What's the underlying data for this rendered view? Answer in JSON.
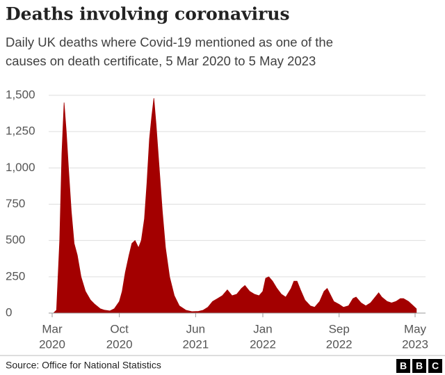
{
  "chart_data": {
    "type": "area",
    "title": "Deaths involving coronavirus",
    "subtitle": [
      "Daily UK deaths where Covid-19 mentioned as one of the",
      "causes on death certificate, 5 Mar 2020 to 5 May 2023"
    ],
    "color": "#a30000",
    "x": [
      "2020-03-05",
      "2020-03-15",
      "2020-03-25",
      "2020-04-01",
      "2020-04-08",
      "2020-04-15",
      "2020-04-22",
      "2020-05-01",
      "2020-05-10",
      "2020-05-20",
      "2020-06-01",
      "2020-06-15",
      "2020-07-01",
      "2020-07-15",
      "2020-08-01",
      "2020-08-15",
      "2020-09-01",
      "2020-09-15",
      "2020-10-01",
      "2020-10-10",
      "2020-10-20",
      "2020-11-01",
      "2020-11-10",
      "2020-11-20",
      "2020-12-01",
      "2020-12-10",
      "2020-12-20",
      "2020-12-28",
      "2021-01-05",
      "2021-01-12",
      "2021-01-19",
      "2021-01-26",
      "2021-02-05",
      "2021-02-15",
      "2021-02-25",
      "2021-03-10",
      "2021-03-25",
      "2021-04-10",
      "2021-05-01",
      "2021-05-20",
      "2021-06-10",
      "2021-06-25",
      "2021-07-10",
      "2021-07-25",
      "2021-08-10",
      "2021-08-25",
      "2021-09-10",
      "2021-09-25",
      "2021-10-10",
      "2021-10-25",
      "2021-11-05",
      "2021-11-20",
      "2021-12-05",
      "2021-12-20",
      "2022-01-01",
      "2022-01-10",
      "2022-01-20",
      "2022-02-01",
      "2022-02-15",
      "2022-03-01",
      "2022-03-15",
      "2022-04-01",
      "2022-04-10",
      "2022-04-20",
      "2022-05-01",
      "2022-05-15",
      "2022-06-01",
      "2022-06-15",
      "2022-07-01",
      "2022-07-15",
      "2022-07-25",
      "2022-08-01",
      "2022-08-15",
      "2022-09-01",
      "2022-09-15",
      "2022-10-01",
      "2022-10-15",
      "2022-10-25",
      "2022-11-10",
      "2022-11-25",
      "2022-12-10",
      "2022-12-25",
      "2023-01-05",
      "2023-01-15",
      "2023-02-01",
      "2023-02-15",
      "2023-03-01",
      "2023-03-15",
      "2023-03-25",
      "2023-04-10",
      "2023-04-25",
      "2023-05-05"
    ],
    "values": [
      0,
      20,
      500,
      1100,
      1450,
      1250,
      1000,
      700,
      480,
      400,
      250,
      150,
      90,
      60,
      30,
      20,
      15,
      30,
      80,
      150,
      280,
      400,
      480,
      500,
      450,
      500,
      650,
      900,
      1200,
      1350,
      1480,
      1300,
      1000,
      700,
      450,
      250,
      120,
      50,
      20,
      10,
      12,
      20,
      40,
      80,
      100,
      120,
      160,
      120,
      130,
      170,
      190,
      150,
      130,
      120,
      150,
      240,
      250,
      220,
      170,
      130,
      110,
      170,
      220,
      220,
      160,
      90,
      50,
      40,
      80,
      150,
      170,
      140,
      80,
      60,
      40,
      50,
      100,
      110,
      70,
      50,
      70,
      110,
      140,
      110,
      80,
      70,
      80,
      100,
      100,
      80,
      50,
      30
    ],
    "xlim": [
      "2020-03-01",
      "2023-05-01"
    ],
    "xticks": [
      {
        "value": "2020-03-01",
        "label": "Mar",
        "year": "2020"
      },
      {
        "value": "2020-10-01",
        "label": "Oct",
        "year": "2020"
      },
      {
        "value": "2021-06-01",
        "label": "Jun",
        "year": "2021"
      },
      {
        "value": "2022-01-01",
        "label": "Jan",
        "year": "2022"
      },
      {
        "value": "2022-09-01",
        "label": "Sep",
        "year": "2022"
      },
      {
        "value": "2023-05-01",
        "label": "May",
        "year": "2023"
      }
    ],
    "ylim": [
      0,
      1500
    ],
    "yticks": [
      0,
      250,
      500,
      750,
      {
        "value": 1000,
        "label": "1,000"
      },
      {
        "value": 1250,
        "label": "1,250"
      },
      {
        "value": 1500,
        "label": "1,500"
      }
    ],
    "grid": true,
    "source": "Source: Office for National Statistics",
    "logo": [
      "B",
      "B",
      "C"
    ]
  }
}
